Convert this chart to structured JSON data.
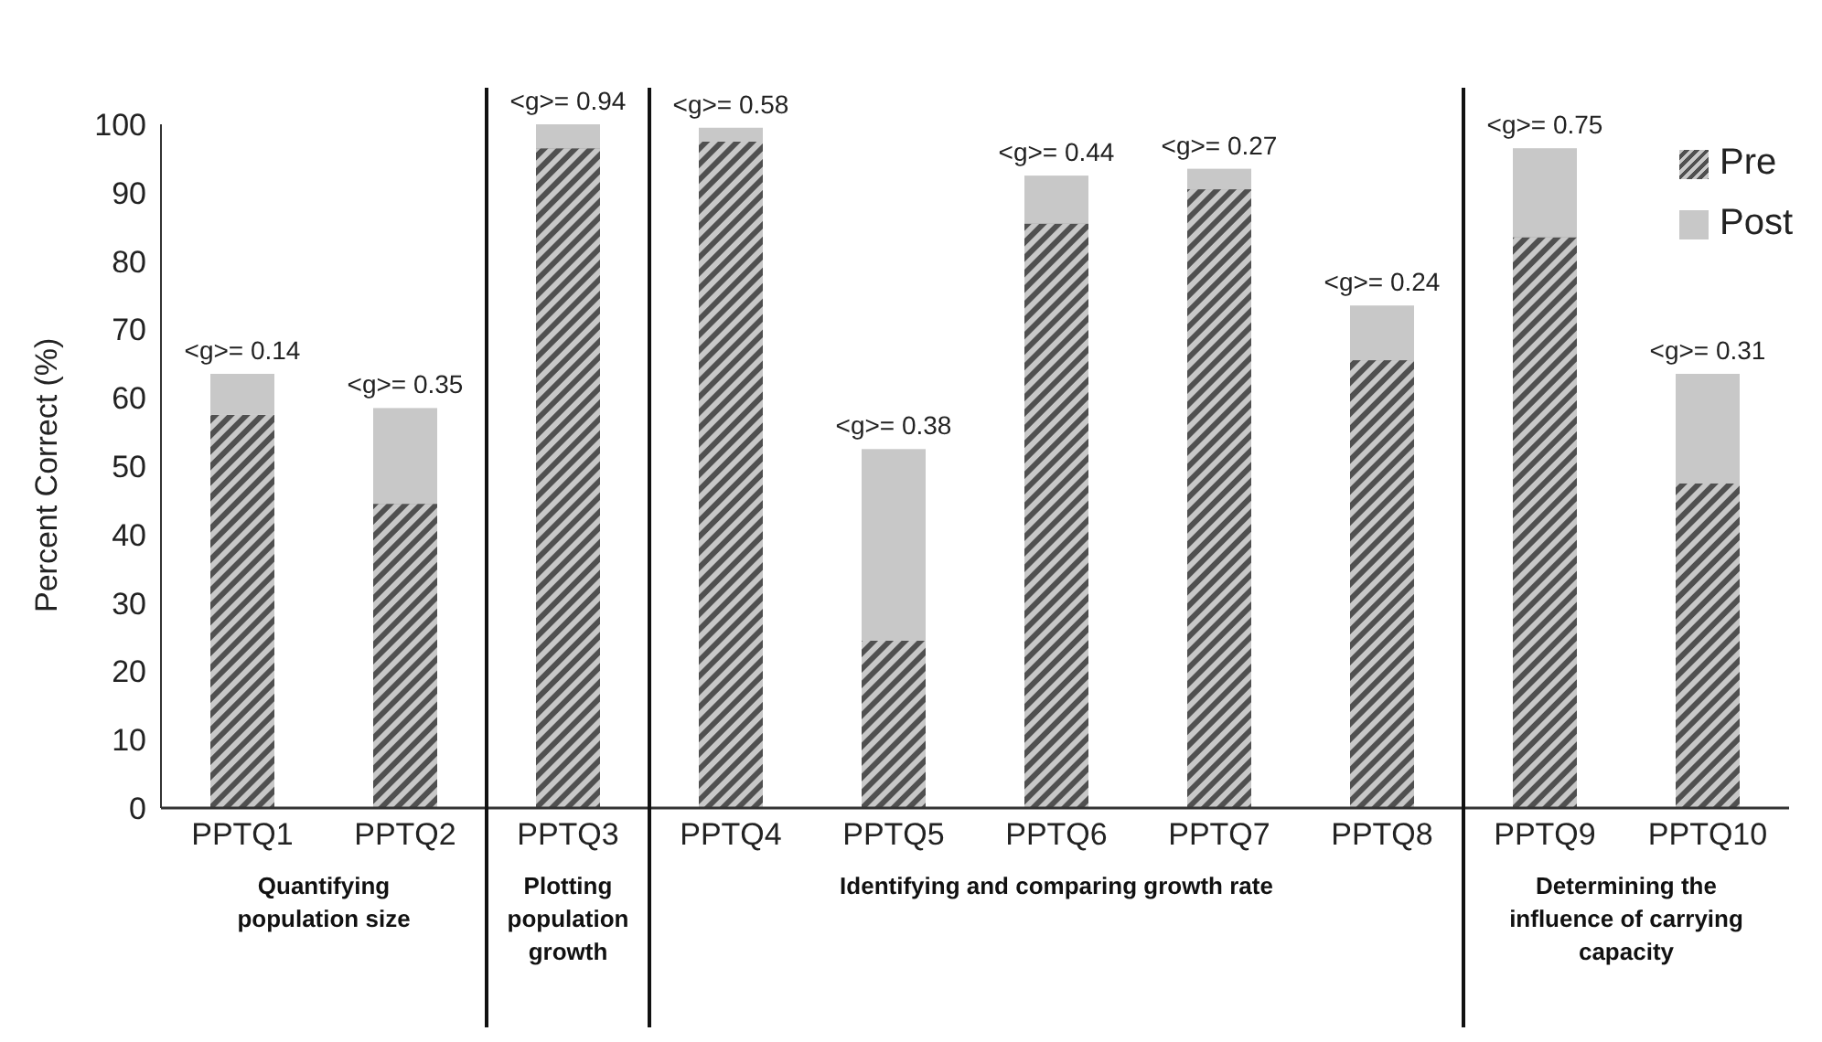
{
  "chart_data": {
    "type": "bar",
    "stacked": true,
    "ylabel": "Percent Correct (%)",
    "categories": [
      "PPTQ1",
      "PPTQ2",
      "PPTQ3",
      "PPTQ4",
      "PPTQ5",
      "PPTQ6",
      "PPTQ7",
      "PPTQ8",
      "PPTQ9",
      "PPTQ10"
    ],
    "series": [
      {
        "name": "Pre",
        "color": "#505050",
        "values": [
          57.5,
          44.5,
          96.5,
          97.5,
          24.5,
          85.5,
          90.5,
          65.5,
          83.5,
          47.5
        ]
      },
      {
        "name": "Post",
        "color": "#c8c8c8",
        "values": [
          6,
          14,
          3.5,
          2,
          28,
          7,
          3,
          8,
          13,
          16
        ]
      }
    ],
    "ylim": [
      0,
      100
    ],
    "yticks": [
      0,
      10,
      20,
      30,
      40,
      50,
      60,
      70,
      80,
      90,
      100
    ],
    "legend": "top right",
    "annotations": [
      {
        "text": "<g>= 0.14",
        "x": "PPTQ1",
        "y": 63.5
      },
      {
        "text": "<g>= 0.35",
        "x": "PPTQ2",
        "y": 58.5
      },
      {
        "text": "<g>= 0.94",
        "x": "PPTQ3",
        "y": 100
      },
      {
        "text": "<g>= 0.58",
        "x": "PPTQ4",
        "y": 99.5
      },
      {
        "text": "<g>= 0.38",
        "x": "PPTQ5",
        "y": 52.5
      },
      {
        "text": "<g>= 0.44",
        "x": "PPTQ6",
        "y": 92.5
      },
      {
        "text": "<g>= 0.27",
        "x": "PPTQ7",
        "y": 93.5
      },
      {
        "text": "<g>= 0.24",
        "x": "PPTQ8",
        "y": 73.5
      },
      {
        "text": "<g>= 0.75",
        "x": "PPTQ9",
        "y": 96.5
      },
      {
        "text": "<g>= 0.31",
        "x": "PPTQ10",
        "y": 63.5
      },
      "Quantifying population size",
      "Plotting population growth",
      "Identifying and comparing growth rate",
      "Determining the influence of carrying capacity"
    ]
  }
}
